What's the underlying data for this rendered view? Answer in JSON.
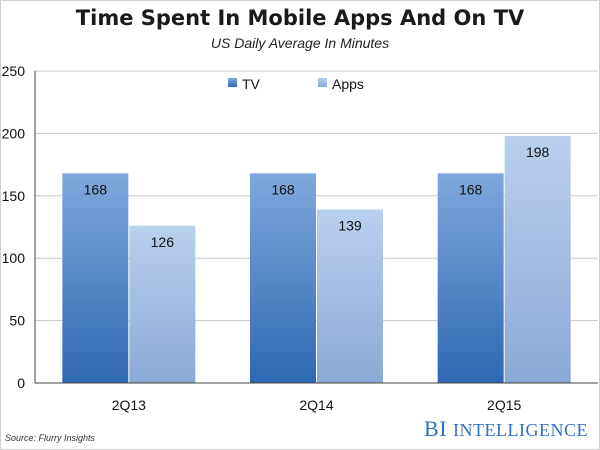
{
  "header": {
    "title": "Time Spent In Mobile Apps And On TV",
    "subtitle": "US Daily Average In Minutes"
  },
  "footer": {
    "source": "Source: Flurry Insights",
    "brand_bi": "BI",
    "brand_intel": "INTELLIGENCE"
  },
  "colors": {
    "tv_top": "#7fa8dc",
    "tv_bottom": "#2f68b3",
    "apps_top": "#b9d0ef",
    "apps_bottom": "#8aa9d6",
    "grid": "#c8c8c8",
    "brand": "#2f6fc1"
  },
  "chart_data": {
    "type": "bar",
    "title": "Time Spent In Mobile Apps And On TV",
    "subtitle": "US Daily Average In Minutes",
    "categories": [
      "2Q13",
      "2Q14",
      "2Q15"
    ],
    "series": [
      {
        "name": "TV",
        "values": [
          168,
          168,
          168
        ]
      },
      {
        "name": "Apps",
        "values": [
          126,
          139,
          198
        ]
      }
    ],
    "ylim": [
      0,
      250
    ],
    "yticks": [
      0,
      50,
      100,
      150,
      200,
      250
    ],
    "grid": true,
    "legend": "top-center",
    "xlabel": "",
    "ylabel": ""
  }
}
